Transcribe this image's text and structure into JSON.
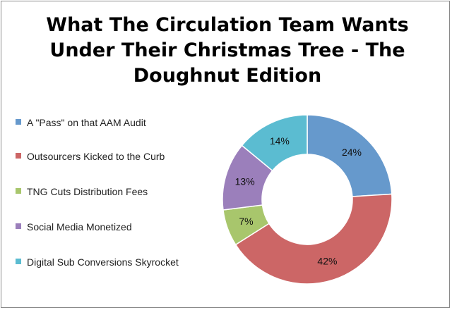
{
  "chart_data": {
    "type": "pie",
    "subtype": "doughnut",
    "title": "What The Circulation Team Wants Under Their Christmas Tree - The Doughnut Edition",
    "legend_position": "left",
    "slices": [
      {
        "label": "A \"Pass\" on that AAM Audit",
        "value": 24,
        "display": "24%",
        "color": "#6699cc"
      },
      {
        "label": "Outsourcers Kicked to the Curb",
        "value": 42,
        "display": "42%",
        "color": "#cc6666"
      },
      {
        "label": "TNG Cuts Distribution Fees",
        "value": 7,
        "display": "7%",
        "color": "#a8c66c"
      },
      {
        "label": "Social Media Monetized",
        "value": 13,
        "display": "13%",
        "color": "#9b7fbb"
      },
      {
        "label": "Digital Sub Conversions Skyrocket",
        "value": 14,
        "display": "14%",
        "color": "#5bbcd1"
      }
    ]
  }
}
